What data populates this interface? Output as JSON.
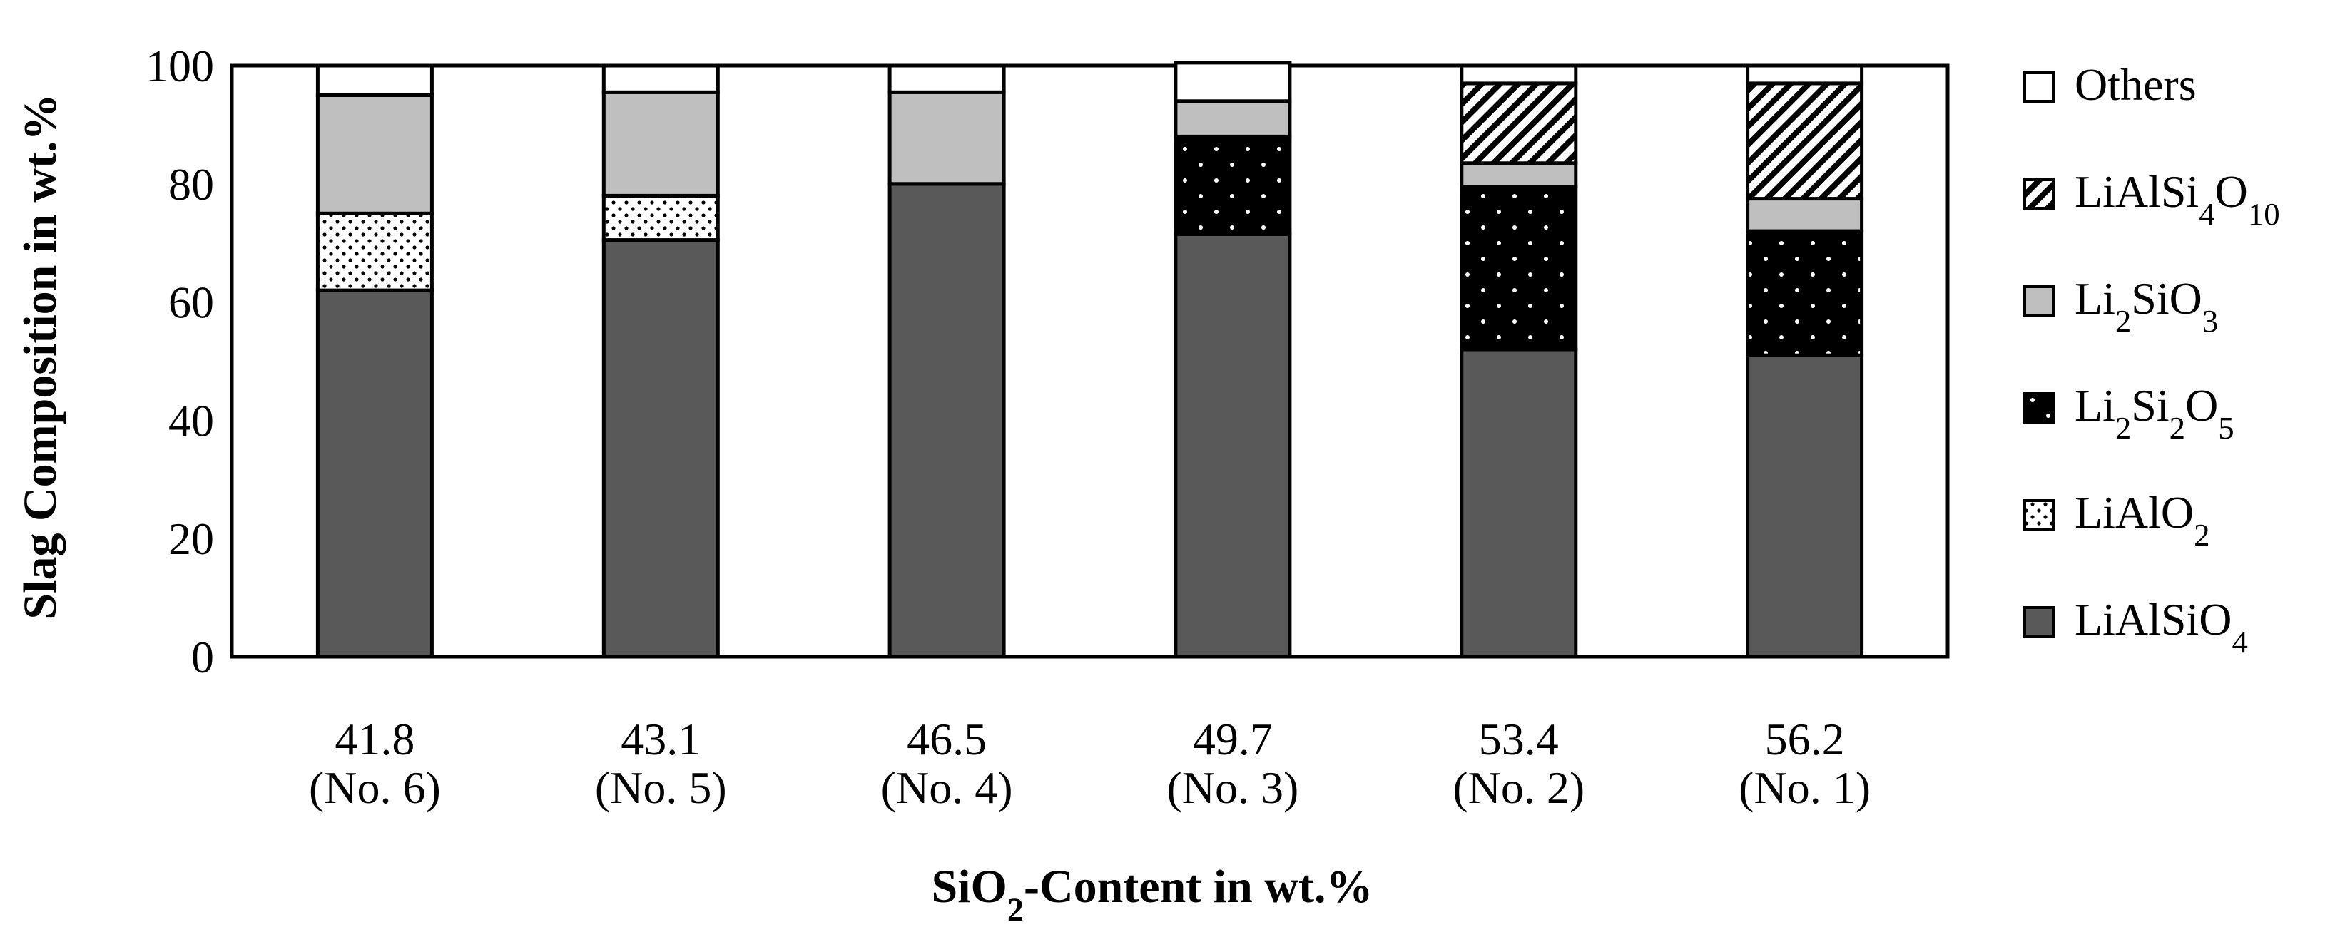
{
  "chart_data": {
    "type": "bar",
    "stacked": true,
    "title": "",
    "xlabel": "SiO2-Content in wt.%",
    "ylabel": "Slag Composition in wt.%",
    "ylim": [
      0,
      100
    ],
    "yticks": [
      0,
      20,
      40,
      60,
      80,
      100
    ],
    "categories": [
      [
        "41.8",
        "(No. 6)"
      ],
      [
        "43.1",
        "(No. 5)"
      ],
      [
        "46.5",
        "(No. 4)"
      ],
      [
        "49.7",
        "(No. 3)"
      ],
      [
        "53.4",
        "(No. 2)"
      ],
      [
        "56.2",
        "(No. 1)"
      ]
    ],
    "legend_position": "right",
    "series": [
      {
        "name": "LiAlSiO4",
        "legend": [
          [
            "LiAlSiO",
            ""
          ],
          [
            "4",
            "sub"
          ]
        ],
        "pattern": "dark-gray",
        "values": [
          62,
          70.5,
          80,
          71.5,
          52,
          51
        ]
      },
      {
        "name": "LiAlO2",
        "legend": [
          [
            "LiAlO",
            ""
          ],
          [
            "2",
            "sub"
          ]
        ],
        "pattern": "dotted",
        "values": [
          13,
          7.5,
          0,
          0,
          0,
          0
        ]
      },
      {
        "name": "Li2Si2O5",
        "legend": [
          [
            "Li",
            ""
          ],
          [
            "2",
            "sub"
          ],
          [
            "Si",
            ""
          ],
          [
            "2",
            "sub"
          ],
          [
            "O",
            ""
          ],
          [
            "5",
            "sub"
          ]
        ],
        "pattern": "black-dots",
        "values": [
          0,
          0,
          0,
          16.5,
          27.5,
          21
        ]
      },
      {
        "name": "Li2SiO3",
        "legend": [
          [
            "Li",
            ""
          ],
          [
            "2",
            "sub"
          ],
          [
            "SiO",
            ""
          ],
          [
            "3",
            "sub"
          ]
        ],
        "pattern": "light-gray",
        "values": [
          20,
          17.5,
          15.5,
          6,
          4,
          5.5
        ]
      },
      {
        "name": "LiAlSi4O10",
        "legend": [
          [
            "LiAlSi",
            ""
          ],
          [
            "4",
            "sub"
          ],
          [
            "O",
            ""
          ],
          [
            "10",
            "sub"
          ]
        ],
        "pattern": "hatched",
        "values": [
          0,
          0,
          0,
          0,
          13.5,
          19.5
        ]
      },
      {
        "name": "Others",
        "legend": [
          [
            "Others",
            ""
          ]
        ],
        "pattern": "white",
        "values": [
          5,
          4.5,
          4.5,
          6.5,
          3,
          3
        ]
      }
    ]
  },
  "axis_titles": {
    "x": [
      [
        "SiO",
        ""
      ],
      [
        "2",
        "sub"
      ],
      [
        "-Content in wt.%",
        ""
      ]
    ],
    "y": "Slag Composition in wt.%"
  }
}
